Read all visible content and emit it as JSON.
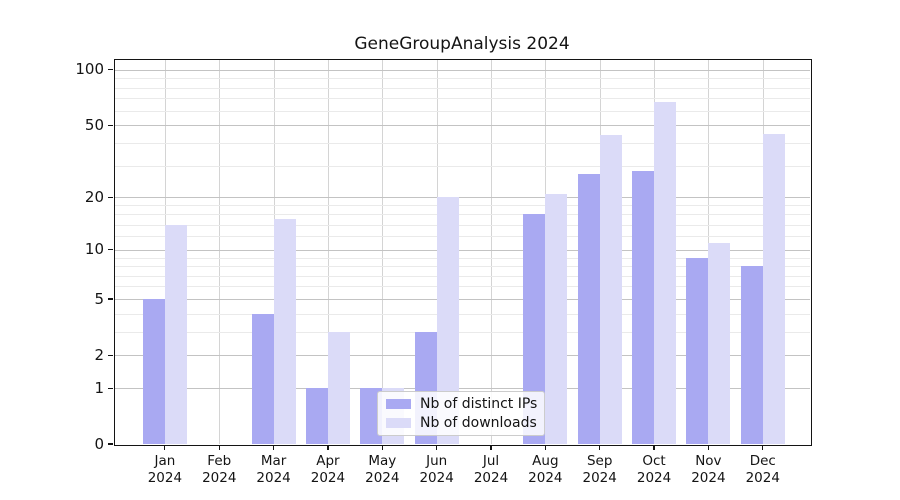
{
  "title": "GeneGroupAnalysis 2024",
  "chart_data": {
    "type": "bar",
    "title": "GeneGroupAnalysis 2024",
    "categories": [
      "Jan 2024",
      "Feb 2024",
      "Mar 2024",
      "Apr 2024",
      "May 2024",
      "Jun 2024",
      "Jul 2024",
      "Aug 2024",
      "Sep 2024",
      "Oct 2024",
      "Nov 2024",
      "Dec 2024"
    ],
    "series": [
      {
        "name": "Nb of distinct IPs",
        "color": "#a9a9f2",
        "values": [
          5,
          0,
          4,
          1,
          1,
          3,
          0,
          16,
          27,
          28,
          9,
          8
        ]
      },
      {
        "name": "Nb of downloads",
        "color": "#dbdbf8",
        "values": [
          14,
          0,
          15,
          3,
          1,
          20,
          0,
          21,
          44,
          67,
          11,
          45
        ]
      }
    ],
    "xlabel": "",
    "ylabel": "",
    "yscale": "log(1+x)",
    "ylim": [
      0,
      113
    ],
    "yticks": [
      0,
      1,
      2,
      5,
      10,
      20,
      50,
      100
    ],
    "minor_gridline_values": [
      3,
      4,
      6,
      7,
      8,
      9,
      12,
      14,
      16,
      18,
      30,
      40,
      60,
      70,
      80,
      90
    ],
    "grid": true,
    "legend_position": "lower center inside"
  },
  "legend": {
    "items": [
      {
        "label": "Nb of distinct IPs"
      },
      {
        "label": "Nb of downloads"
      }
    ]
  },
  "colors": {
    "series_ips": "#a9a9f2",
    "series_downloads": "#dbdbf8",
    "grid_major": "#c3c3c3",
    "grid_minor": "#eaeaea",
    "grid_vertical": "#d4d4d4",
    "axis": "#141414",
    "background": "#ffffff"
  }
}
